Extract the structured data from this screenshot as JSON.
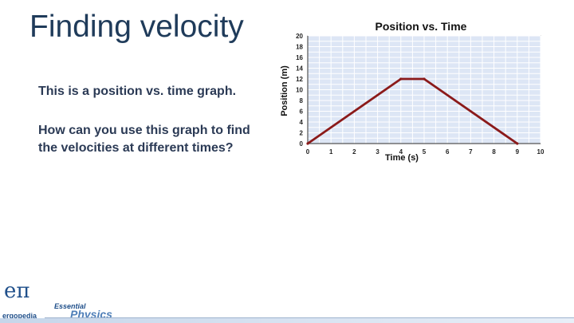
{
  "slide": {
    "title": "Finding velocity",
    "bullets": [
      "This is a position vs. time graph.",
      "How can you use this graph to find the velocities at different times?"
    ]
  },
  "branding": {
    "logo_symbol": "eπ",
    "logo_text": "ergopedia",
    "series_top": "Essential",
    "series_main": "Physics"
  },
  "chart_data": {
    "type": "line",
    "title": "Position vs. Time",
    "xlabel": "Time (s)",
    "ylabel": "Position (m)",
    "xlim": [
      0,
      10
    ],
    "ylim": [
      0,
      20
    ],
    "x_ticks": [
      0,
      1,
      2,
      3,
      4,
      5,
      6,
      7,
      8,
      9,
      10
    ],
    "y_ticks": [
      0,
      2,
      4,
      6,
      8,
      10,
      12,
      14,
      16,
      18,
      20
    ],
    "grid": true,
    "series": [
      {
        "x": [
          0,
          4,
          5,
          9
        ],
        "y": [
          0,
          12,
          12,
          0
        ],
        "color": "#8b1a1a"
      }
    ],
    "colors": {
      "plot_bg": "#dde6f5",
      "grid": "#ffffff",
      "axis": "#555555"
    }
  }
}
